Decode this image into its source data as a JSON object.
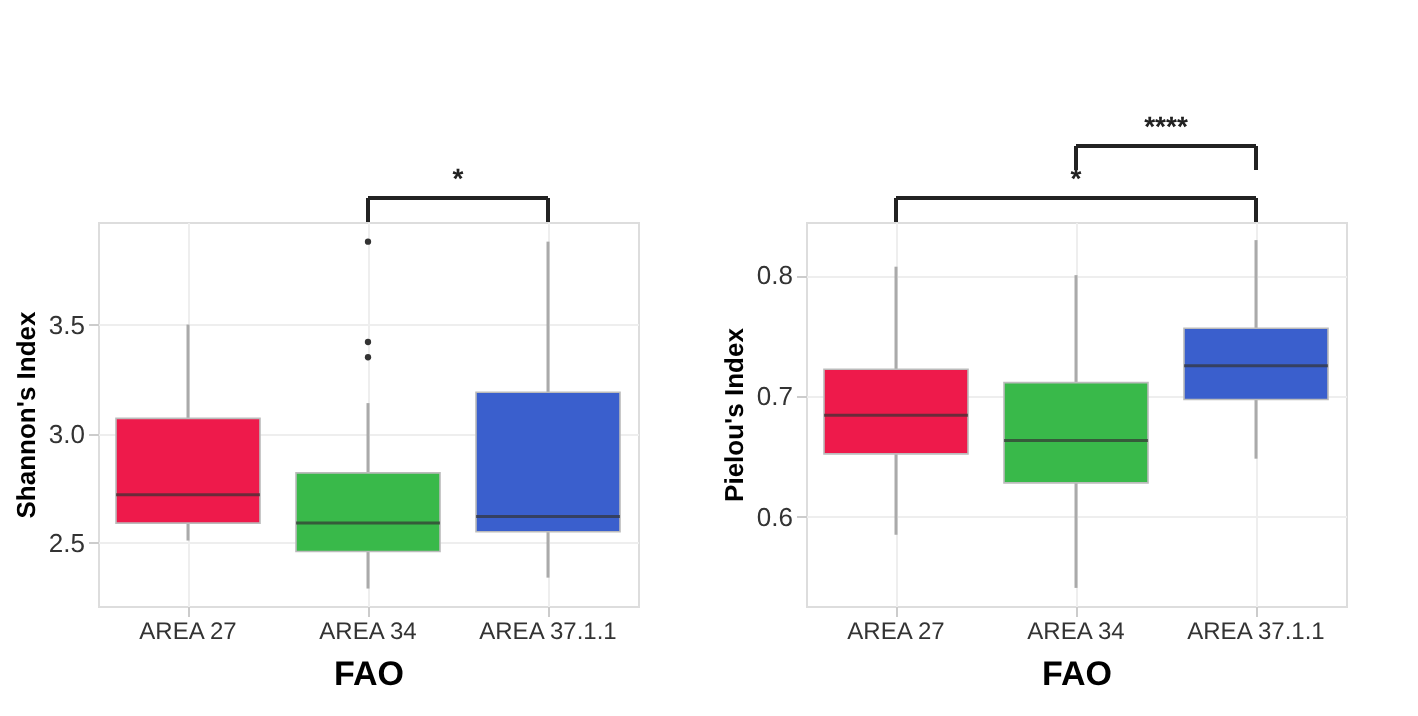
{
  "chart_data": [
    {
      "type": "box",
      "xlabel": "FAO",
      "ylabel": "Shannon's Index",
      "categories": [
        "AREA 27",
        "AREA 34",
        "AREA 37.1.1"
      ],
      "colors": [
        "#ee1a4b",
        "#39b94a",
        "#3a5fcd"
      ],
      "boxes": [
        {
          "low": 2.51,
          "q1": 2.59,
          "median": 2.72,
          "q3": 3.07,
          "high": 3.5
        },
        {
          "low": 2.29,
          "q1": 2.46,
          "median": 2.59,
          "q3": 2.82,
          "high": 3.14,
          "outliers": [
            3.88,
            3.42,
            3.35
          ]
        },
        {
          "low": 2.34,
          "q1": 2.55,
          "median": 2.62,
          "q3": 3.19,
          "high": 3.88
        }
      ],
      "ylim": [
        2.21,
        3.97
      ],
      "yticks": [
        2.5,
        {
          "value": 3.0,
          "label": "3.0"
        },
        3.5
      ],
      "grid": true,
      "annotations": [
        "*"
      ]
    },
    {
      "type": "box",
      "xlabel": "FAO",
      "ylabel": "Pielou's Index",
      "categories": [
        "AREA 27",
        "AREA 34",
        "AREA 37.1.1"
      ],
      "colors": [
        "#ee1a4b",
        "#39b94a",
        "#3a5fcd"
      ],
      "boxes": [
        {
          "low": 0.585,
          "q1": 0.652,
          "median": 0.684,
          "q3": 0.722,
          "high": 0.807
        },
        {
          "low": 0.541,
          "q1": 0.628,
          "median": 0.663,
          "q3": 0.711,
          "high": 0.8
        },
        {
          "low": 0.648,
          "q1": 0.697,
          "median": 0.725,
          "q3": 0.756,
          "high": 0.829
        }
      ],
      "ylim": [
        0.526,
        0.844
      ],
      "yticks": [
        0.6,
        0.7,
        0.8
      ],
      "grid": true,
      "annotations": [
        "*",
        "****"
      ]
    }
  ]
}
